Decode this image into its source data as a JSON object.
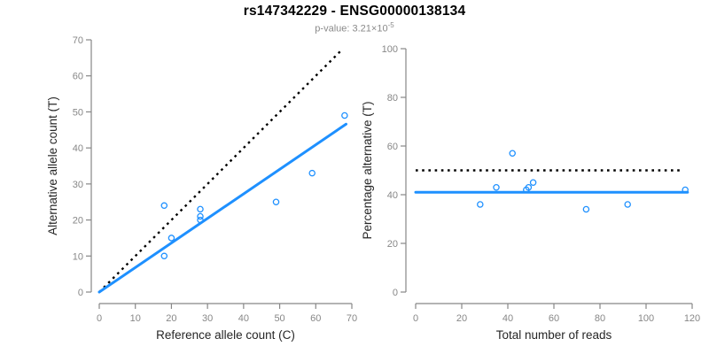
{
  "header": {
    "title": "rs147342229 - ENSG00000138134",
    "pvalue_text": "p-value: 3.21×10",
    "pvalue_exponent": "-5"
  },
  "colors": {
    "point_blue": "#1E90FF",
    "line_blue": "#1E90FF",
    "dotted_black": "#000000",
    "axis_gray": "#878787",
    "tick_label_gray": "#878787",
    "axis_title_dark": "#262626",
    "subtitle_gray": "#8a8a8a",
    "background": "#ffffff"
  },
  "chart_data": [
    {
      "type": "scatter",
      "panel": "left",
      "xlabel": "Reference allele count (C)",
      "ylabel": "Alternative allele count (T)",
      "xlim": [
        0,
        70
      ],
      "ylim": [
        0,
        70
      ],
      "xticks": [
        0,
        10,
        20,
        30,
        40,
        50,
        60,
        70
      ],
      "yticks": [
        0,
        10,
        20,
        30,
        40,
        50,
        60,
        70
      ],
      "grid": false,
      "legend": false,
      "marker": "open-circle",
      "points": [
        [
          18,
          24
        ],
        [
          18,
          10
        ],
        [
          20,
          15
        ],
        [
          28,
          23
        ],
        [
          28,
          21
        ],
        [
          28,
          20
        ],
        [
          49,
          25
        ],
        [
          59,
          33
        ],
        [
          68,
          49
        ]
      ],
      "lines": [
        {
          "name": "identity-line",
          "style": "dotted",
          "color": "black",
          "x1": 0,
          "y1": 0,
          "x2": 67.2,
          "y2": 67.2
        },
        {
          "name": "regression-line",
          "style": "solid",
          "color": "blue",
          "x1": 0,
          "y1": 0,
          "x2": 68.4,
          "y2": 46.6
        }
      ]
    },
    {
      "type": "scatter",
      "panel": "right",
      "xlabel": "Total number of reads",
      "ylabel": "Percentage alternative (T)",
      "xlim": [
        0,
        120
      ],
      "ylim": [
        0,
        100
      ],
      "xticks": [
        0,
        20,
        40,
        60,
        80,
        100,
        120
      ],
      "yticks": [
        0,
        20,
        40,
        60,
        80,
        100
      ],
      "grid": false,
      "legend": false,
      "marker": "open-circle",
      "points": [
        [
          42,
          57
        ],
        [
          28,
          36
        ],
        [
          35,
          43
        ],
        [
          49,
          43
        ],
        [
          48,
          42
        ],
        [
          51,
          45
        ],
        [
          74,
          34
        ],
        [
          92,
          36
        ],
        [
          117,
          42
        ]
      ],
      "lines": [
        {
          "name": "expected-50pct-line",
          "style": "dotted",
          "color": "black",
          "x1": 0,
          "y1": 50,
          "x2": 115,
          "y2": 50
        },
        {
          "name": "mean-percentage-line",
          "style": "solid",
          "color": "blue",
          "x1": 0,
          "y1": 41,
          "x2": 118,
          "y2": 41
        }
      ]
    }
  ]
}
